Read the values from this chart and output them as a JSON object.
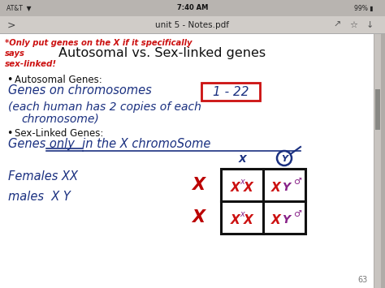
{
  "bg_color": "#ffffff",
  "outer_bg": "#b0aca8",
  "status_bar_color": "#c8c4c2",
  "title_bar_color": "#d8d4d0",
  "title_text": "unit 5 - Notes.pdf",
  "main_title": "Autosomal vs. Sex-linked genes",
  "red_hw_line1": "*Only put genes on the X if it specifically",
  "red_hw_line2": "says",
  "red_hw_line3": "sex-linked!",
  "bullet1_label": "Autosomal Genes:",
  "bullet1_line1": "Genes on chromosomes",
  "bullet1_box": "1-22",
  "bullet1_line2": "(each human has 2 copies of each",
  "bullet1_line3": "chromosome)",
  "bullet2_label": "Sex-Linked Genes:",
  "bullet2_line1": "Genes only  in the X chromoSome",
  "females_text": "Females XX",
  "males_text": "males  X Y",
  "page_number": "63",
  "red_color": "#cc1111",
  "blue_color": "#1a3080",
  "black_color": "#111111",
  "gray_color": "#777777",
  "purple_color": "#882288",
  "darkred_color": "#bb0000",
  "content_bg": "#f8f8f6"
}
